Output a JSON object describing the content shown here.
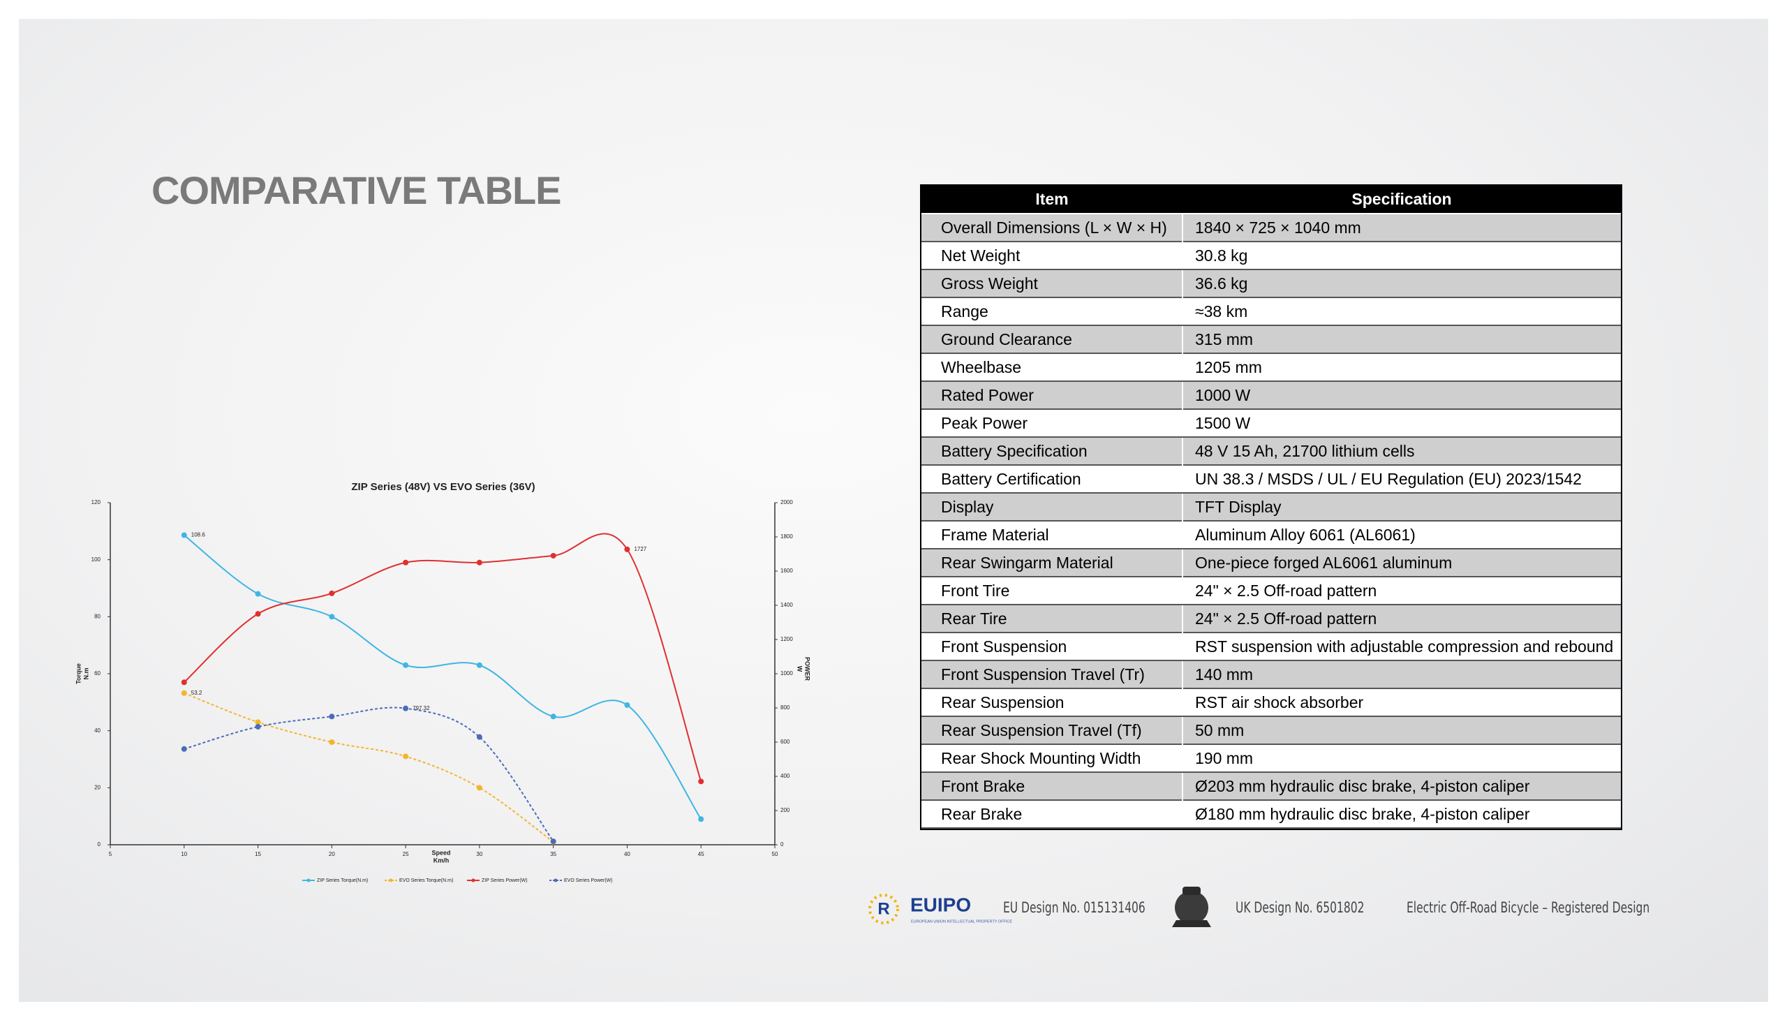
{
  "header": {
    "title": "COMPARATIVE TABLE"
  },
  "chart_data": {
    "type": "line",
    "title": "ZIP Series (48V) VS EVO Series (36V)",
    "x_label": [
      "Speed",
      "Km/h"
    ],
    "y_label": [
      "Torque",
      "N.m"
    ],
    "y2_label": [
      "POWER",
      "W"
    ],
    "x": [
      10,
      15,
      20,
      25,
      30,
      35,
      40,
      45
    ],
    "xlim": [
      5,
      50
    ],
    "xticks": [
      5,
      10,
      15,
      20,
      25,
      30,
      35,
      40,
      45,
      50
    ],
    "ylim": [
      0,
      120
    ],
    "yticks": [
      0,
      20,
      40,
      60,
      80,
      100,
      120
    ],
    "y2lim": [
      0,
      2000
    ],
    "y2ticks": [
      0,
      200,
      400,
      600,
      800,
      1000,
      1200,
      1400,
      1600,
      1800,
      2000
    ],
    "grid": false,
    "legend": "bottom",
    "series": [
      {
        "name": "ZIP Series Torque(N.m)",
        "color": "#3fb6e2",
        "dashed": false,
        "values": [
          108.6,
          88,
          80,
          63,
          63,
          45,
          49,
          9
        ],
        "value_labels": [
          "108.6",
          null,
          null,
          null,
          null,
          null,
          null,
          null
        ]
      },
      {
        "name": "EVO Series Torque(N.m)",
        "color": "#f4b52c",
        "dashed": true,
        "values": [
          53.2,
          43,
          36,
          31,
          20,
          1,
          null,
          null
        ],
        "value_labels": [
          "53.2",
          null,
          null,
          null,
          null,
          null,
          null,
          null
        ]
      },
      {
        "name": "ZIP Series Power(W)",
        "color": "#e0302e",
        "dashed": false,
        "axis": "y2",
        "values": [
          950,
          1350,
          1470,
          1650,
          1650,
          1690,
          1727,
          370
        ],
        "value_labels": [
          null,
          null,
          null,
          null,
          null,
          null,
          "1727",
          null
        ]
      },
      {
        "name": "EVO Series Power(W)",
        "color": "#4b6cb7",
        "dashed": true,
        "axis": "y2",
        "values": [
          560,
          690,
          750,
          797.32,
          630,
          20,
          null,
          null
        ],
        "value_labels": [
          null,
          null,
          null,
          "797.32",
          null,
          null,
          null,
          null
        ]
      }
    ]
  },
  "table": {
    "columns": [
      "Item",
      "Specification"
    ],
    "rows": [
      [
        "Overall Dimensions (L × W × H)",
        "1840 × 725 × 1040 mm"
      ],
      [
        "Net Weight",
        "30.8 kg"
      ],
      [
        "Gross Weight",
        "36.6 kg"
      ],
      [
        "Range",
        "≈38 km"
      ],
      [
        "Ground Clearance",
        "315 mm"
      ],
      [
        "Wheelbase",
        "1205 mm"
      ],
      [
        "Rated Power",
        "1000 W"
      ],
      [
        "Peak Power",
        "1500 W"
      ],
      [
        "Battery Specification",
        "48 V 15 Ah, 21700 lithium cells"
      ],
      [
        "Battery Certification",
        "UN 38.3 / MSDS / UL / EU Regulation (EU) 2023/1542"
      ],
      [
        "Display",
        "TFT Display"
      ],
      [
        "Frame Material",
        "Aluminum Alloy 6061 (AL6061)"
      ],
      [
        "Rear Swingarm Material",
        "One-piece forged AL6061 aluminum"
      ],
      [
        "Front Tire",
        "24\" × 2.5 Off-road pattern"
      ],
      [
        "Rear Tire",
        "24\" × 2.5 Off-road pattern"
      ],
      [
        "Front Suspension",
        "RST suspension with adjustable compression and rebound"
      ],
      [
        "Front Suspension Travel (Tr)",
        "140 mm"
      ],
      [
        "Rear Suspension",
        "RST air shock absorber"
      ],
      [
        "Rear Suspension Travel (Tf)",
        "50 mm"
      ],
      [
        "Rear Shock Mounting Width",
        "190 mm"
      ],
      [
        "Front Brake",
        "Ø203 mm hydraulic disc brake, 4-piston caliper"
      ],
      [
        "Rear Brake",
        "Ø180 mm hydraulic disc brake, 4-piston caliper"
      ]
    ]
  },
  "footer": {
    "euipo": "EUIPO",
    "euipo_sub": "EUROPEAN UNION INTELLECTUAL PROPERTY OFFICE",
    "eu_design": "EU Design No. 015131406",
    "uk_design": "UK Design No. 6501802",
    "note": "Electric Off-Road Bicycle – Registered Design"
  }
}
